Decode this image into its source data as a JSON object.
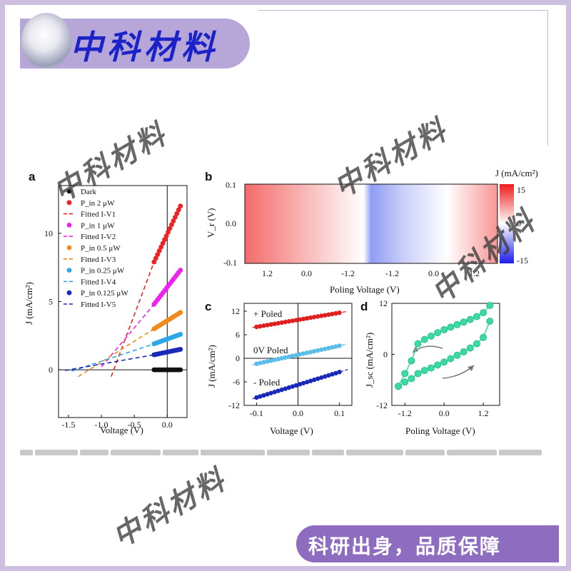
{
  "brand": {
    "title": "中科材料",
    "slogan": "科研出身，品质保障"
  },
  "watermark_text": "中科材料",
  "panels": {
    "a": "a",
    "b": "b",
    "c": "c",
    "d": "d"
  },
  "chart_data": [
    {
      "panel": "a",
      "type": "scatter",
      "xlabel": "Voltage (V)",
      "ylabel": "J (mA/cm²)",
      "xlim": [
        -1.65,
        0.3
      ],
      "ylim": [
        -3.5,
        13.5
      ],
      "xticks": [
        -1.5,
        -1.0,
        -0.5,
        0.0
      ],
      "xtick_labels": [
        "-1.5",
        "-1.0",
        "-0.5",
        "0.0"
      ],
      "yticks": [
        0,
        5,
        10
      ],
      "ytick_labels": [
        "0",
        "5",
        "10"
      ],
      "legend_placement": "top-left",
      "series": [
        {
          "name": "Dark",
          "color": "#111111",
          "x": [
            -0.2,
            0.2
          ],
          "y": [
            0,
            0
          ]
        },
        {
          "name": "P_in 2 μW",
          "color": "#ee2222",
          "x": [
            -0.2,
            0.2
          ],
          "y": [
            7.9,
            12.0
          ]
        },
        {
          "name": "P_in 1 μW",
          "color": "#ee22ee",
          "x": [
            -0.2,
            0.2
          ],
          "y": [
            4.8,
            7.3
          ]
        },
        {
          "name": "P_in 0.5 μW",
          "color": "#f08a1c",
          "x": [
            -0.2,
            0.2
          ],
          "y": [
            3.0,
            4.2
          ]
        },
        {
          "name": "P_in 0.25 μW",
          "color": "#2aa8e8",
          "x": [
            -0.2,
            0.2
          ],
          "y": [
            1.9,
            2.6
          ]
        },
        {
          "name": "P_in 0.125 μW",
          "color": "#1a2ab8",
          "x": [
            -0.2,
            0.2
          ],
          "y": [
            1.1,
            1.5
          ]
        }
      ],
      "fits": [
        {
          "name": "Fitted I-V1",
          "color": "#ee2222",
          "x": [
            -0.85,
            -0.2
          ],
          "y": [
            -0.5,
            7.9
          ]
        },
        {
          "name": "Fitted I-V2",
          "color": "#ee22ee",
          "x": [
            -1.0,
            -0.2
          ],
          "y": [
            0.2,
            4.8
          ]
        },
        {
          "name": "Fitted I-V3",
          "color": "#f08a1c",
          "x": [
            -1.35,
            -0.2
          ],
          "y": [
            -0.5,
            3.0
          ]
        },
        {
          "name": "Fitted I-V4",
          "color": "#2aa8e8",
          "x": [
            -1.45,
            -0.2
          ],
          "y": [
            -0.1,
            1.9
          ]
        },
        {
          "name": "Fitted I-V5",
          "color": "#1a2ab8",
          "x": [
            -1.55,
            -0.2
          ],
          "y": [
            -0.05,
            1.1
          ]
        }
      ],
      "legend": [
        "Dark",
        "P_in 2 μW",
        "Fitted I-V1",
        "P_in 1 μW",
        "Fitted I-V2",
        "P_in 0.5 μW",
        "Fitted I-V3",
        "P_in 0.25 μW",
        "Fitted I-V4",
        "P_in 0.125 μW",
        "Fitted I-V5"
      ]
    },
    {
      "panel": "b",
      "type": "heatmap",
      "xlabel": "Poling Voltage (V)",
      "ylabel": "V_r (V)",
      "colorbar_label": "J (mA/cm²)",
      "colorbar_ticks": [
        "15",
        "0",
        "-15"
      ],
      "xtick_labels": [
        "1.2",
        "0.0",
        "-1.2",
        "-1.2",
        "0.0",
        "1.2"
      ],
      "ytick_labels": [
        "0.1",
        "0.0",
        "-0.1"
      ],
      "zlim": [
        -15,
        15
      ]
    },
    {
      "panel": "c",
      "type": "scatter",
      "xlabel": "Voltage (V)",
      "ylabel": "J (mA/cm²)",
      "xlim": [
        -0.13,
        0.13
      ],
      "ylim": [
        -12,
        14
      ],
      "xticks": [
        -0.1,
        0.0,
        0.1
      ],
      "xtick_labels": [
        "-0.1",
        "0.0",
        "0.1"
      ],
      "yticks": [
        12,
        6,
        0,
        -6,
        -12
      ],
      "ytick_labels": [
        "12",
        "6",
        "0",
        "-6",
        "-12"
      ],
      "series": [
        {
          "name": "+ Poled",
          "color": "#e02020",
          "x": [
            -0.1,
            0.1
          ],
          "y": [
            8.0,
            11.6
          ]
        },
        {
          "name": "0V Poled",
          "color": "#5bbde8",
          "x": [
            -0.1,
            0.1
          ],
          "y": [
            -1.4,
            3.2
          ]
        },
        {
          "name": "- Poled",
          "color": "#1a2ab8",
          "x": [
            -0.1,
            0.1
          ],
          "y": [
            -10.0,
            -3.5
          ]
        }
      ]
    },
    {
      "panel": "d",
      "type": "line",
      "xlabel": "Poling Voltage (V)",
      "ylabel": "J_sc (mA/cm²)",
      "xlim": [
        -1.6,
        1.7
      ],
      "ylim": [
        -12,
        12
      ],
      "xticks": [
        -1.2,
        0.0,
        1.2
      ],
      "xtick_labels": [
        "-1.2",
        "0.0",
        "1.2"
      ],
      "yticks": [
        12,
        0,
        -12
      ],
      "ytick_labels": [
        "12",
        "0",
        "-12"
      ],
      "color": "#3bd9a4",
      "upper": {
        "x": [
          -1.4,
          -1.2,
          -1.0,
          -0.8,
          -0.6,
          -0.4,
          -0.2,
          0.0,
          0.2,
          0.4,
          0.6,
          0.8,
          1.0,
          1.2,
          1.4
        ],
        "y": [
          -7.5,
          -4.5,
          -1.5,
          2.5,
          3.5,
          4.3,
          5.1,
          5.8,
          6.4,
          7.0,
          7.6,
          8.2,
          8.9,
          9.8,
          11.5
        ]
      },
      "lower": {
        "x": [
          -1.4,
          -1.2,
          -1.0,
          -0.8,
          -0.6,
          -0.4,
          -0.2,
          0.0,
          0.2,
          0.4,
          0.6,
          0.8,
          1.0,
          1.2,
          1.4
        ],
        "y": [
          -7.5,
          -6.5,
          -5.7,
          -4.5,
          -3.8,
          -3.2,
          -2.5,
          -1.8,
          -1.0,
          -0.2,
          0.6,
          1.5,
          2.5,
          4.0,
          7.8
        ]
      }
    }
  ],
  "panel_c_labels": {
    "plus": "+ Poled",
    "zero": "0V Poled",
    "minus": "- Poled"
  }
}
